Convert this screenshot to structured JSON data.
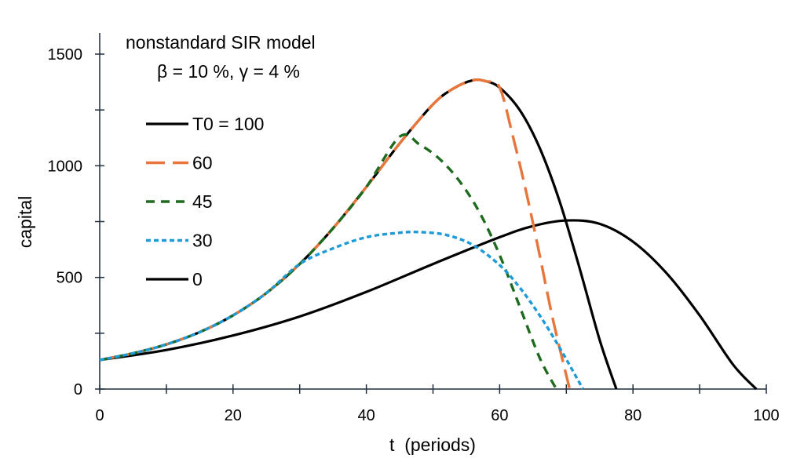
{
  "chart_data": {
    "type": "line",
    "title": "nonstandard SIR model",
    "subtitle": "β = 10 %,  γ = 4 %",
    "xlabel": "t  (periods)",
    "ylabel": "capital",
    "xlim": [
      0,
      100
    ],
    "ylim": [
      0,
      1500
    ],
    "xticks": [
      0,
      20,
      40,
      60,
      80,
      100
    ],
    "yticks": [
      0,
      500,
      1000,
      1500
    ],
    "x_minor_step": 10,
    "y_minor_step": 250,
    "grid": false,
    "legend_position": "upper-left",
    "series": [
      {
        "name": "T0 = 100",
        "color": "#000000",
        "dash": "solid",
        "x": [
          0,
          5,
          10,
          15,
          20,
          25,
          30,
          35,
          40,
          45,
          50,
          53,
          56,
          58,
          60,
          63,
          66,
          69,
          72,
          75,
          77.5
        ],
        "y": [
          130,
          160,
          200,
          255,
          330,
          430,
          560,
          720,
          905,
          1100,
          1275,
          1345,
          1383,
          1378,
          1350,
          1250,
          1080,
          840,
          540,
          220,
          0
        ]
      },
      {
        "name": "60",
        "color": "#E8753A",
        "dash": "long-dash",
        "x": [
          0,
          5,
          10,
          15,
          20,
          25,
          30,
          35,
          40,
          45,
          50,
          53,
          56,
          58,
          60,
          62,
          64,
          66,
          68,
          70.5
        ],
        "y": [
          130,
          160,
          200,
          255,
          330,
          430,
          560,
          720,
          905,
          1100,
          1275,
          1345,
          1383,
          1378,
          1350,
          1130,
          880,
          600,
          310,
          0
        ]
      },
      {
        "name": "45",
        "color": "#1E6B20",
        "dash": "dash",
        "x": [
          0,
          5,
          10,
          15,
          20,
          25,
          30,
          35,
          40,
          45,
          48,
          51,
          54,
          57,
          60,
          63,
          66,
          68.5
        ],
        "y": [
          130,
          160,
          200,
          255,
          330,
          430,
          560,
          720,
          905,
          1130,
          1095,
          1030,
          930,
          790,
          600,
          370,
          140,
          0
        ]
      },
      {
        "name": "30",
        "color": "#1E9BD7",
        "dash": "dot",
        "x": [
          0,
          5,
          10,
          15,
          20,
          25,
          30,
          35,
          40,
          45,
          48,
          52,
          56,
          60,
          63,
          66,
          69,
          72.5
        ],
        "y": [
          130,
          160,
          200,
          255,
          330,
          430,
          560,
          630,
          680,
          700,
          703,
          690,
          645,
          555,
          455,
          330,
          185,
          0
        ]
      },
      {
        "name": "0",
        "color": "#000000",
        "dash": "solid",
        "x": [
          0,
          10,
          20,
          30,
          40,
          50,
          60,
          65,
          70,
          75,
          80,
          85,
          90,
          95,
          98.5
        ],
        "y": [
          130,
          175,
          240,
          325,
          435,
          560,
          680,
          730,
          755,
          740,
          660,
          520,
          330,
          110,
          0
        ]
      }
    ]
  }
}
